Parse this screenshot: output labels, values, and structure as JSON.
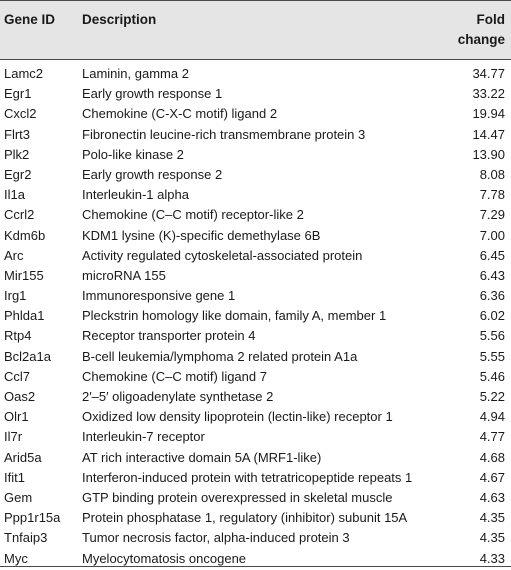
{
  "header": {
    "gene_id": "Gene ID",
    "description": "Description",
    "fold_line1": "Fold",
    "fold_line2": "change"
  },
  "rows": [
    {
      "gene": "Lamc2",
      "description": "Laminin, gamma 2",
      "fold": "34.77"
    },
    {
      "gene": "Egr1",
      "description": "Early growth response 1",
      "fold": "33.22"
    },
    {
      "gene": "Cxcl2",
      "description": "Chemokine (C-X-C motif) ligand 2",
      "fold": "19.94"
    },
    {
      "gene": "Flrt3",
      "description": "Fibronectin leucine-rich transmembrane protein 3",
      "fold": "14.47"
    },
    {
      "gene": "Plk2",
      "description": "Polo-like kinase 2",
      "fold": "13.90"
    },
    {
      "gene": "Egr2",
      "description": "Early growth response 2",
      "fold": "8.08"
    },
    {
      "gene": "Il1a",
      "description": "Interleukin-1 alpha",
      "fold": "7.78"
    },
    {
      "gene": "Ccrl2",
      "description": "Chemokine (C–C motif) receptor-like 2",
      "fold": "7.29"
    },
    {
      "gene": "Kdm6b",
      "description": "KDM1 lysine (K)-specific demethylase 6B",
      "fold": "7.00"
    },
    {
      "gene": "Arc",
      "description": "Activity regulated cytoskeletal-associated protein",
      "fold": "6.45"
    },
    {
      "gene": "Mir155",
      "description": "microRNA 155",
      "fold": "6.43"
    },
    {
      "gene": "Irg1",
      "description": "Immunoresponsive gene 1",
      "fold": "6.36"
    },
    {
      "gene": "Phlda1",
      "description": "Pleckstrin homology like domain, family A, member 1",
      "fold": "6.02"
    },
    {
      "gene": "Rtp4",
      "description": "Receptor transporter protein 4",
      "fold": "5.56"
    },
    {
      "gene": "Bcl2a1a",
      "description": "B-cell leukemia/lymphoma 2 related protein A1a",
      "fold": "5.55"
    },
    {
      "gene": "Ccl7",
      "description": "Chemokine (C–C motif) ligand 7",
      "fold": "5.46"
    },
    {
      "gene": "Oas2",
      "description": "2′–5′ oligoadenylate synthetase 2",
      "fold": "5.22"
    },
    {
      "gene": "Olr1",
      "description": "Oxidized low density lipoprotein (lectin-like) receptor 1",
      "fold": "4.94"
    },
    {
      "gene": "Il7r",
      "description": "Interleukin-7 receptor",
      "fold": "4.77"
    },
    {
      "gene": "Arid5a",
      "description": "AT rich interactive domain 5A (MRF1-like)",
      "fold": "4.68"
    },
    {
      "gene": "Ifit1",
      "description": "Interferon-induced protein with tetratricopeptide repeats 1",
      "fold": "4.67"
    },
    {
      "gene": "Gem",
      "description": "GTP binding protein overexpressed in skeletal muscle",
      "fold": "4.63"
    },
    {
      "gene": "Ppp1r15a",
      "description": "Protein phosphatase 1, regulatory (inhibitor) subunit 15A",
      "fold": "4.35"
    },
    {
      "gene": "Tnfaip3",
      "description": "Tumor necrosis factor, alpha-induced protein 3",
      "fold": "4.35"
    },
    {
      "gene": "Myc",
      "description": "Myelocytomatosis oncogene",
      "fold": "4.33"
    }
  ]
}
